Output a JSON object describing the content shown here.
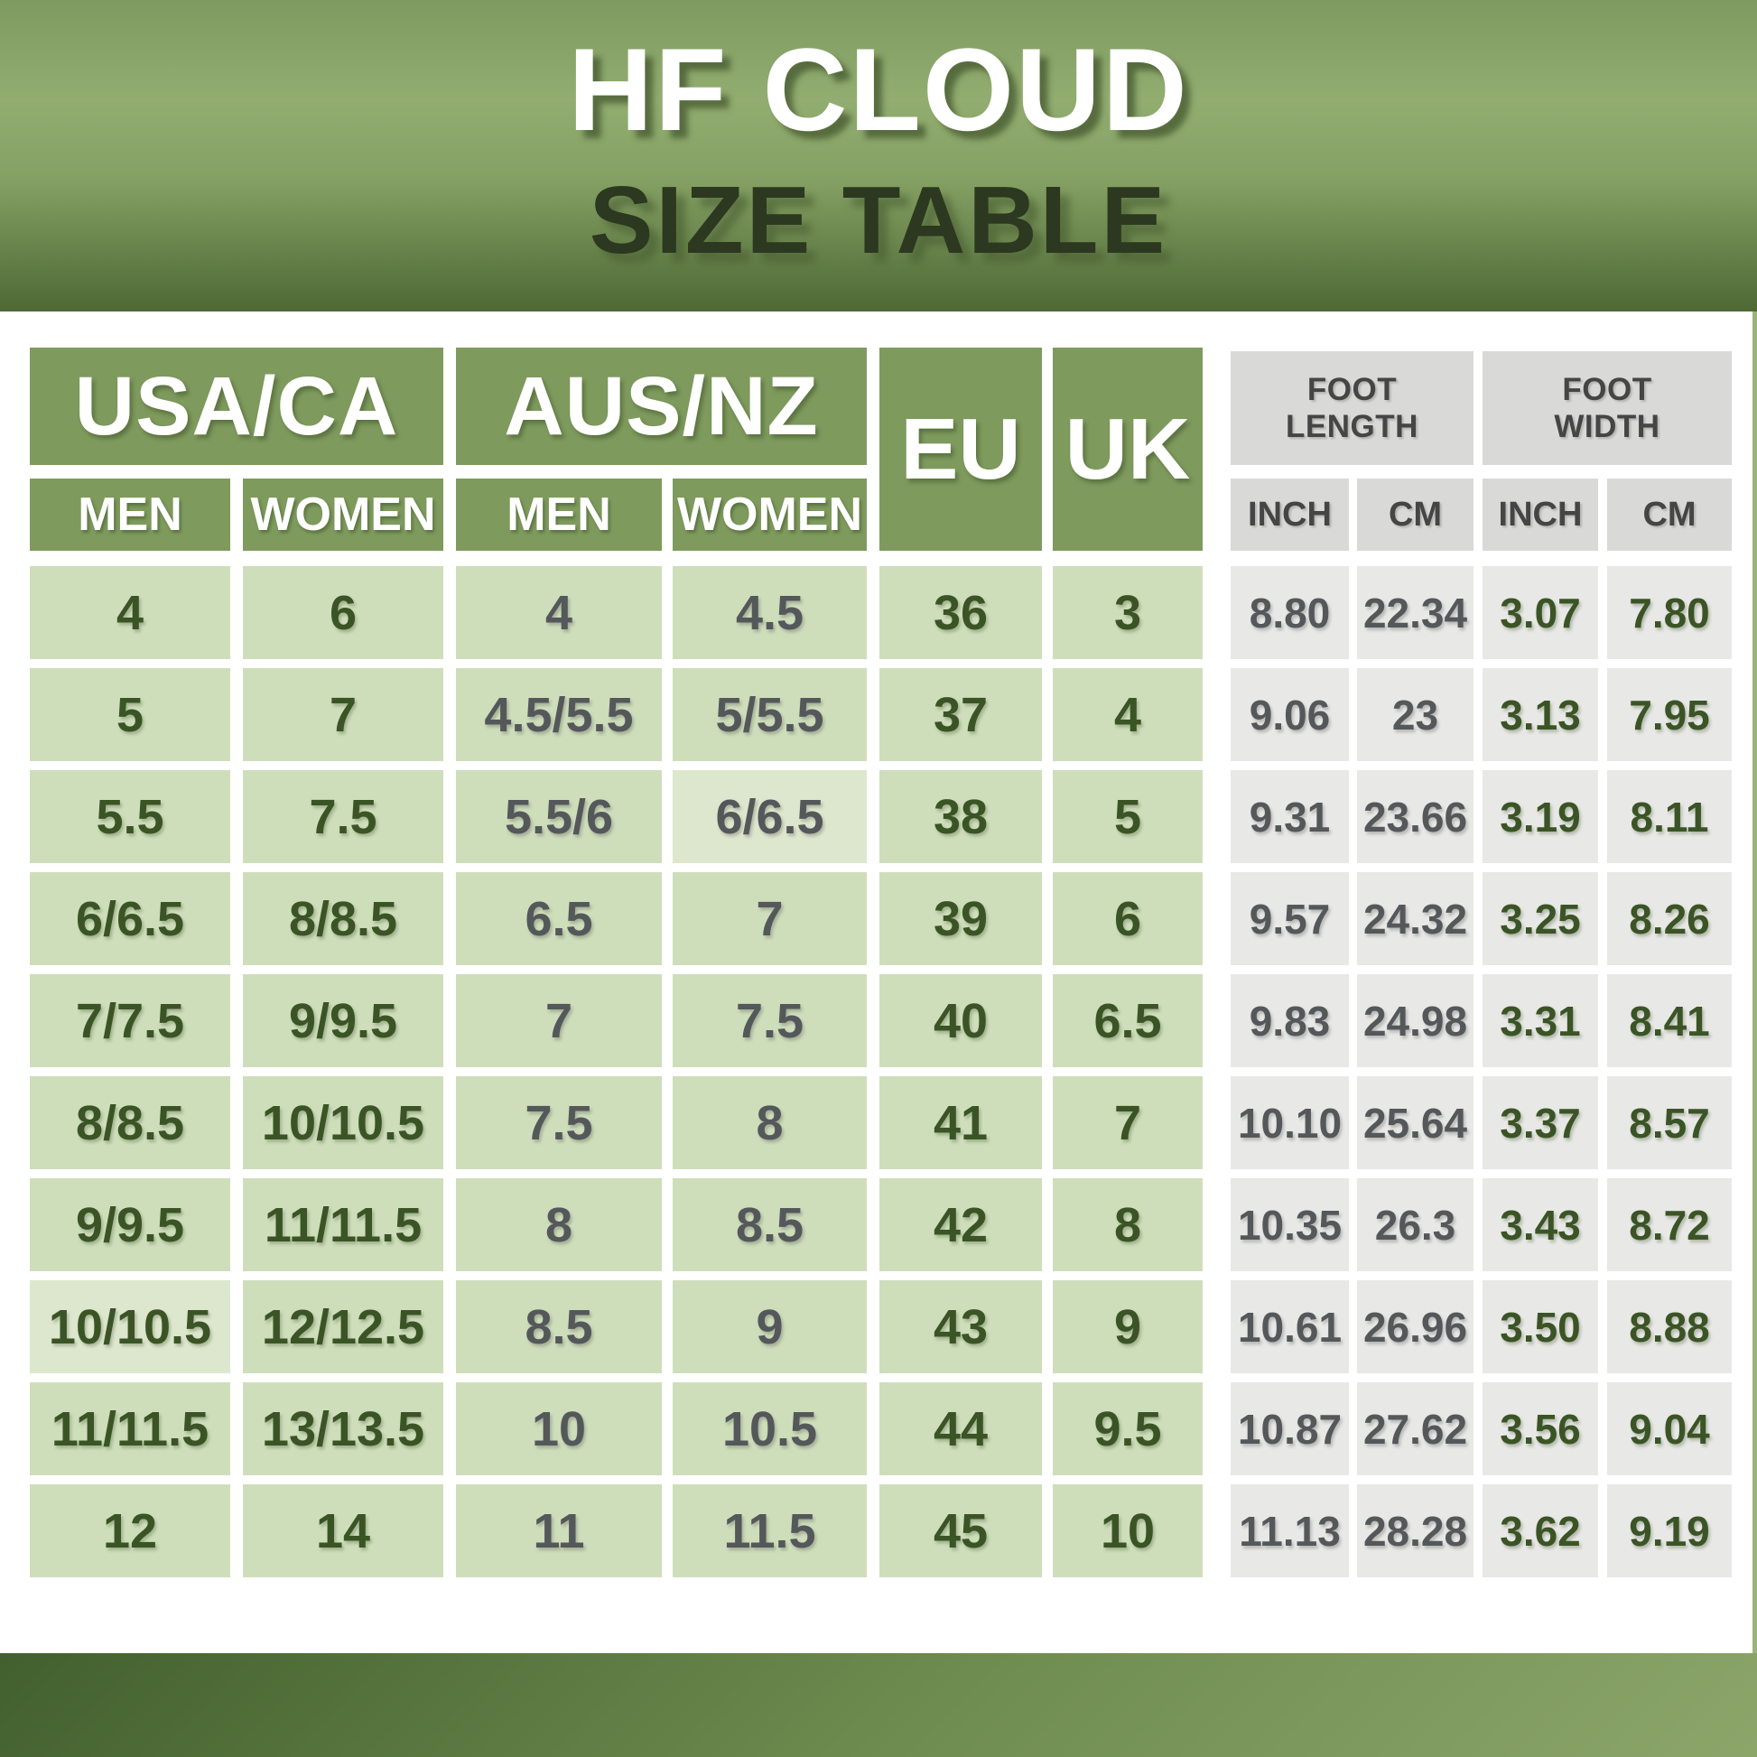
{
  "banner": {
    "title": "HF CLOUD",
    "subtitle": "SIZE TABLE"
  },
  "headers": {
    "usa_ca": "USA/CA",
    "aus_nz": "AUS/NZ",
    "eu": "EU",
    "uk": "UK",
    "foot_length": "FOOT LENGTH",
    "foot_width": "FOOT WIDTH",
    "men": "MEN",
    "women": "WOMEN",
    "inch": "INCH",
    "cm": "CM"
  },
  "chart_data": {
    "type": "table",
    "title": "HF CLOUD SIZE TABLE",
    "column_groups": [
      {
        "label": "USA/CA",
        "children": [
          "MEN",
          "WOMEN"
        ]
      },
      {
        "label": "AUS/NZ",
        "children": [
          "MEN",
          "WOMEN"
        ]
      },
      {
        "label": "EU"
      },
      {
        "label": "UK"
      },
      {
        "label": "FOOT LENGTH",
        "children": [
          "INCH",
          "CM"
        ]
      },
      {
        "label": "FOOT WIDTH",
        "children": [
          "INCH",
          "CM"
        ]
      }
    ],
    "columns": [
      "USA/CA MEN",
      "USA/CA WOMEN",
      "AUS/NZ MEN",
      "AUS/NZ WOMEN",
      "EU",
      "UK",
      "FOOT LENGTH INCH",
      "FOOT LENGTH CM",
      "FOOT WIDTH INCH",
      "FOOT WIDTH CM"
    ],
    "rows": [
      [
        "4",
        "6",
        "4",
        "4.5",
        "36",
        "3",
        "8.80",
        "22.34",
        "3.07",
        "7.80"
      ],
      [
        "5",
        "7",
        "4.5/5.5",
        "5/5.5",
        "37",
        "4",
        "9.06",
        "23",
        "3.13",
        "7.95"
      ],
      [
        "5.5",
        "7.5",
        "5.5/6",
        "6/6.5",
        "38",
        "5",
        "9.31",
        "23.66",
        "3.19",
        "8.11"
      ],
      [
        "6/6.5",
        "8/8.5",
        "6.5",
        "7",
        "39",
        "6",
        "9.57",
        "24.32",
        "3.25",
        "8.26"
      ],
      [
        "7/7.5",
        "9/9.5",
        "7",
        "7.5",
        "40",
        "6.5",
        "9.83",
        "24.98",
        "3.31",
        "8.41"
      ],
      [
        "8/8.5",
        "10/10.5",
        "7.5",
        "8",
        "41",
        "7",
        "10.10",
        "25.64",
        "3.37",
        "8.57"
      ],
      [
        "9/9.5",
        "11/11.5",
        "8",
        "8.5",
        "42",
        "8",
        "10.35",
        "26.3",
        "3.43",
        "8.72"
      ],
      [
        "10/10.5",
        "12/12.5",
        "8.5",
        "9",
        "43",
        "9",
        "10.61",
        "26.96",
        "3.50",
        "8.88"
      ],
      [
        "11/11.5",
        "13/13.5",
        "10",
        "10.5",
        "44",
        "9.5",
        "10.87",
        "27.62",
        "3.56",
        "9.04"
      ],
      [
        "12",
        "14",
        "11",
        "11.5",
        "45",
        "10",
        "11.13",
        "28.28",
        "3.62",
        "9.19"
      ]
    ]
  },
  "colors": {
    "banner_green_mid": "#92ad70",
    "banner_green_dark": "#4e6935",
    "header_green": "#7e9a5d",
    "cell_green": "#cedebb",
    "cell_green_light": "#dde7cd",
    "header_gray": "#d9d9d8",
    "cell_gray": "#e8e8e6",
    "text_dark_green": "#3b5426",
    "text_gray": "#55585a",
    "title_white": "#ffffff",
    "subtitle_dark_green": "#2c3820"
  }
}
